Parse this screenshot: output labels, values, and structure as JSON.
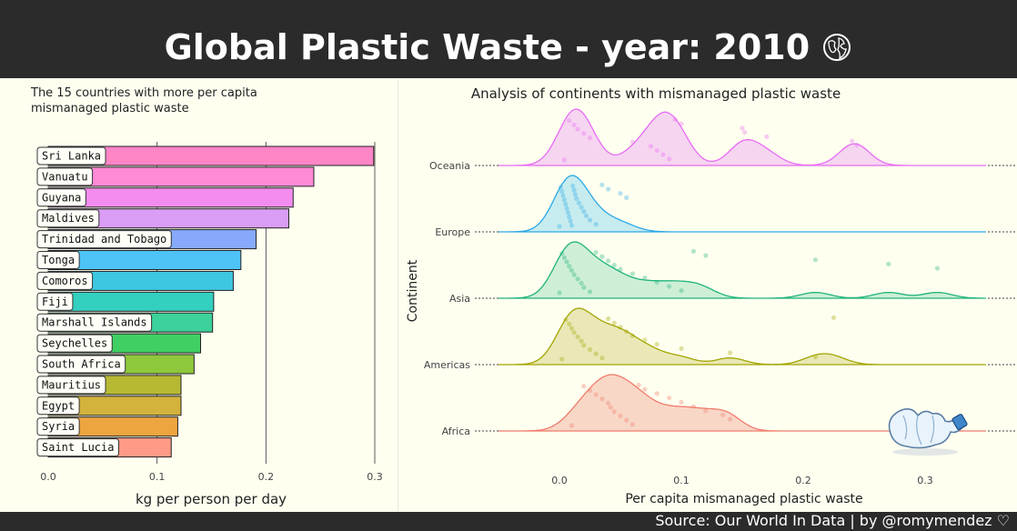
{
  "page_title": "Global Plastic Waste - year: 2010",
  "source": "Source: Our World In Data | by @romymendez",
  "chart_data": [
    {
      "type": "bar",
      "title": "The 15 countries with more per capita mismanaged plastic waste",
      "xlabel": "kg per person per day",
      "ylabel": "",
      "xlim": [
        0,
        0.3
      ],
      "grid": true,
      "xticks": [
        "0.0",
        "0.1",
        "0.2",
        "0.3"
      ],
      "categories": [
        "Sri Lanka",
        "Vanuatu",
        "Guyana",
        "Maldives",
        "Trinidad and Tobago",
        "Tonga",
        "Comoros",
        "Fiji",
        "Marshall Islands",
        "Seychelles",
        "South Africa",
        "Mauritius",
        "Egypt",
        "Syria",
        "Saint Lucia"
      ],
      "values": [
        0.299,
        0.244,
        0.225,
        0.221,
        0.191,
        0.177,
        0.17,
        0.152,
        0.151,
        0.14,
        0.134,
        0.122,
        0.122,
        0.119,
        0.113
      ],
      "colors": [
        "#ff86c6",
        "#ff8ad6",
        "#f38cee",
        "#d99df5",
        "#87a9fb",
        "#4ec3f7",
        "#3ec7e0",
        "#33d0c0",
        "#3dd19b",
        "#40cf63",
        "#8ec83c",
        "#b7b933",
        "#d3b33b",
        "#eda53f",
        "#ff9a86"
      ]
    },
    {
      "type": "ridgeline",
      "title": "Analysis of continents with mismanaged plastic waste",
      "xlabel": "Per capita mismanaged plastic waste",
      "ylabel": "Continent",
      "xlim": [
        -0.05,
        0.35
      ],
      "xticks": [
        "0.0",
        "0.1",
        "0.2",
        "0.3"
      ],
      "series": [
        {
          "name": "Oceania",
          "color": "#e76bf3",
          "fill": "#f3c7f2",
          "points": [
            0.004,
            0.008,
            0.012,
            0.015,
            0.02,
            0.025,
            0.06,
            0.075,
            0.08,
            0.085,
            0.09,
            0.095,
            0.1,
            0.15,
            0.152,
            0.17,
            0.24,
            0.244
          ]
        },
        {
          "name": "Europe",
          "color": "#2aa8e8",
          "fill": "#b4e6ef",
          "points": [
            0.0,
            0.001,
            0.002,
            0.003,
            0.004,
            0.005,
            0.006,
            0.007,
            0.008,
            0.009,
            0.01,
            0.011,
            0.012,
            0.013,
            0.014,
            0.016,
            0.018,
            0.02,
            0.022,
            0.025,
            0.03,
            0.035,
            0.04,
            0.05,
            0.055
          ]
        },
        {
          "name": "Asia",
          "color": "#1fb37a",
          "fill": "#bde9cd",
          "points": [
            0.0,
            0.002,
            0.004,
            0.006,
            0.008,
            0.01,
            0.012,
            0.015,
            0.018,
            0.02,
            0.025,
            0.03,
            0.035,
            0.04,
            0.045,
            0.05,
            0.06,
            0.07,
            0.08,
            0.09,
            0.1,
            0.11,
            0.12,
            0.21,
            0.27,
            0.31
          ]
        },
        {
          "name": "Americas",
          "color": "#a3a500",
          "fill": "#e2e0a3",
          "points": [
            0.002,
            0.005,
            0.008,
            0.01,
            0.012,
            0.015,
            0.018,
            0.02,
            0.025,
            0.03,
            0.035,
            0.04,
            0.045,
            0.05,
            0.055,
            0.06,
            0.07,
            0.08,
            0.1,
            0.14,
            0.21,
            0.225
          ]
        },
        {
          "name": "Africa",
          "color": "#f07b6b",
          "fill": "#f6c9b9",
          "points": [
            0.01,
            0.02,
            0.025,
            0.03,
            0.035,
            0.04,
            0.042,
            0.045,
            0.05,
            0.055,
            0.06,
            0.065,
            0.07,
            0.08,
            0.09,
            0.1,
            0.11,
            0.12,
            0.134,
            0.14
          ]
        }
      ]
    }
  ],
  "icons": {
    "title_icon": "globe-icon",
    "bottle_icon": "crushed-bottle-icon",
    "footer_icon": "heart-icon"
  }
}
